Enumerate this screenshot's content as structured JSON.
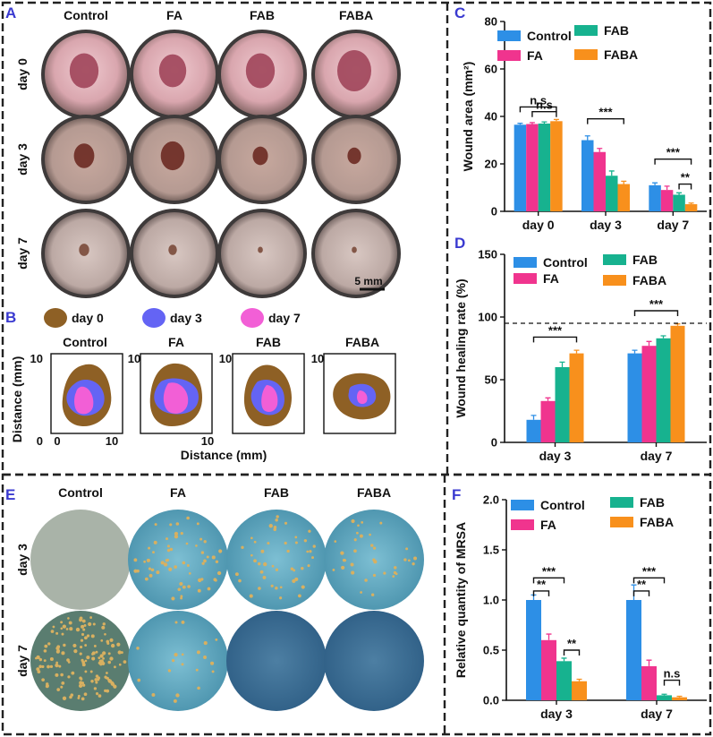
{
  "colors": {
    "control": "#2d8fe6",
    "fa": "#f0348e",
    "fab": "#17b28f",
    "faba": "#f8901c",
    "panel_label": "#3a3ad0",
    "day0": "#8e6025",
    "day3": "#6464f4",
    "day7": "#f25fd6",
    "wound_skin": "#c89a92",
    "colony": "#d8b060",
    "agar": "#5aa0b8"
  },
  "panel_labels": {
    "a": "A",
    "b": "B",
    "c": "C",
    "d": "D",
    "e": "E",
    "f": "F"
  },
  "panel_a": {
    "columns": [
      "Control",
      "FA",
      "FAB",
      "FABA"
    ],
    "rows": [
      "day 0",
      "day 3",
      "day 7"
    ],
    "scale_bar": "5 mm"
  },
  "panel_b": {
    "legend": [
      "day 0",
      "day 3",
      "day 7"
    ],
    "titles": [
      "Control",
      "FA",
      "FAB",
      "FABA"
    ],
    "ylabel": "Distance (mm)",
    "xlabel": "Distance (mm)",
    "tick_min": "0",
    "tick_max": "10"
  },
  "panel_e": {
    "columns": [
      "Control",
      "FA",
      "FAB",
      "FABA"
    ],
    "rows": [
      "day 3",
      "day 7"
    ]
  },
  "chart_data": [
    {
      "id": "C",
      "type": "bar",
      "ylabel": "Wound area (mm²)",
      "ylim": [
        0,
        80
      ],
      "yticks": [
        "0",
        "20",
        "40",
        "60",
        "80"
      ],
      "categories": [
        "day 0",
        "day 3",
        "day 7"
      ],
      "legend": [
        "Control",
        "FA",
        "FAB",
        "FABA"
      ],
      "series": [
        {
          "name": "Control",
          "values": [
            36.5,
            30.0,
            11.0
          ],
          "errors": [
            0.6,
            1.8,
            1.0
          ]
        },
        {
          "name": "FA",
          "values": [
            36.8,
            25.0,
            9.0
          ],
          "errors": [
            0.6,
            1.5,
            1.6
          ]
        },
        {
          "name": "FAB",
          "values": [
            37.0,
            15.0,
            7.0
          ],
          "errors": [
            0.7,
            2.0,
            0.8
          ]
        },
        {
          "name": "FABA",
          "values": [
            38.0,
            11.5,
            3.0
          ],
          "errors": [
            0.7,
            1.2,
            0.5
          ]
        }
      ],
      "annotations": [
        {
          "text": "n.s",
          "group": 0,
          "from": 0,
          "to": 3,
          "y": 44
        },
        {
          "text": "n.s",
          "group": 0,
          "from": 1,
          "to": 3,
          "y": 42
        },
        {
          "text": "***",
          "group": 1,
          "from": 0,
          "to": 3,
          "y": 39
        },
        {
          "text": "***",
          "group": 2,
          "from": 0,
          "to": 3,
          "y": 22
        },
        {
          "text": "**",
          "group": 2,
          "from": 2,
          "to": 3,
          "y": 11.5
        }
      ]
    },
    {
      "id": "D",
      "type": "bar",
      "ylabel": "Wound healing rate (%)",
      "ylim": [
        0,
        150
      ],
      "yticks": [
        "0",
        "50",
        "100",
        "150"
      ],
      "categories": [
        "day 3",
        "day 7"
      ],
      "legend": [
        "Control",
        "FA",
        "FAB",
        "FABA"
      ],
      "reference_line": 95,
      "series": [
        {
          "name": "Control",
          "values": [
            18.0,
            71.0
          ],
          "errors": [
            3.5,
            2.5
          ]
        },
        {
          "name": "FA",
          "values": [
            33.0,
            77.0
          ],
          "errors": [
            2.5,
            3.5
          ]
        },
        {
          "name": "FAB",
          "values": [
            60.0,
            83.0
          ],
          "errors": [
            4.0,
            2.0
          ]
        },
        {
          "name": "FABA",
          "values": [
            71.0,
            93.0
          ],
          "errors": [
            2.5,
            1.5
          ]
        }
      ],
      "annotations": [
        {
          "text": "***",
          "group": 0,
          "from": 0,
          "to": 3,
          "y": 84
        },
        {
          "text": "***",
          "group": 1,
          "from": 0,
          "to": 3,
          "y": 105
        }
      ]
    },
    {
      "id": "F",
      "type": "bar",
      "ylabel": "Relative quantity of MRSA",
      "ylim": [
        0,
        2.0
      ],
      "yticks": [
        "0.0",
        "0.5",
        "1.0",
        "1.5",
        "2.0"
      ],
      "categories": [
        "day 3",
        "day 7"
      ],
      "legend": [
        "Control",
        "FA",
        "FAB",
        "FABA"
      ],
      "series": [
        {
          "name": "Control",
          "values": [
            1.0,
            1.0
          ],
          "errors": [
            0.05,
            0.15
          ]
        },
        {
          "name": "FA",
          "values": [
            0.6,
            0.34
          ],
          "errors": [
            0.06,
            0.06
          ]
        },
        {
          "name": "FAB",
          "values": [
            0.39,
            0.05
          ],
          "errors": [
            0.03,
            0.01
          ]
        },
        {
          "name": "FABA",
          "values": [
            0.19,
            0.03
          ],
          "errors": [
            0.02,
            0.01
          ]
        }
      ],
      "annotations": [
        {
          "text": "***",
          "group": 0,
          "from": 0,
          "to": 2,
          "y": 1.22
        },
        {
          "text": "**",
          "group": 0,
          "from": 0,
          "to": 1,
          "y": 1.09
        },
        {
          "text": "**",
          "group": 0,
          "from": 2,
          "to": 3,
          "y": 0.5
        },
        {
          "text": "***",
          "group": 1,
          "from": 0,
          "to": 2,
          "y": 1.22
        },
        {
          "text": "**",
          "group": 1,
          "from": 0,
          "to": 1,
          "y": 1.09
        },
        {
          "text": "n.s",
          "group": 1,
          "from": 2,
          "to": 3,
          "y": 0.2
        }
      ]
    }
  ]
}
